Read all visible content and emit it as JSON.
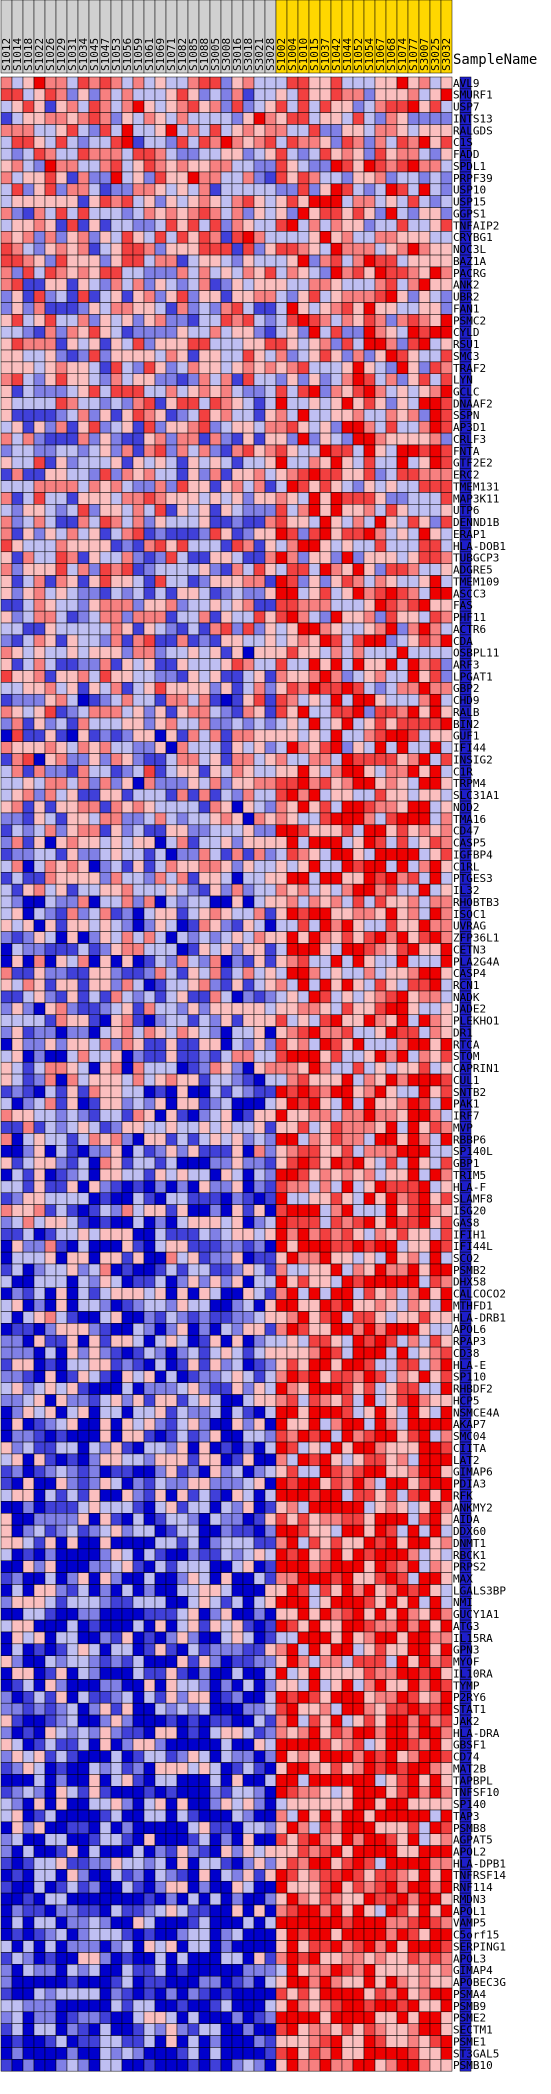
{
  "chart_data": {
    "type": "heatmap",
    "row_header": "SampleName",
    "samples": [
      "S1012",
      "S1014",
      "S1018",
      "S1022",
      "S1026",
      "S1029",
      "S1031",
      "S1034",
      "S1045",
      "S1047",
      "S1053",
      "S1056",
      "S1059",
      "S1061",
      "S1069",
      "S1071",
      "S1082",
      "S1085",
      "S1088",
      "S3005",
      "S3008",
      "S3016",
      "S3018",
      "S3021",
      "S3028",
      "S1002",
      "S1004",
      "S1010",
      "S1015",
      "S1037",
      "S1042",
      "S1044",
      "S1052",
      "S1054",
      "S1067",
      "S1068",
      "S1074",
      "S1077",
      "S3007",
      "S3025",
      "S3032"
    ],
    "sample_groups": [
      {
        "count": 25,
        "color": "#d0d0d0"
      },
      {
        "count": 16,
        "color": "#ffd700"
      }
    ],
    "genes": [
      "AVL9",
      "SMURF1",
      "USP7",
      "INTS13",
      "RALGDS",
      "C1S",
      "FADD",
      "SPDL1",
      "PRPF39",
      "USP10",
      "USP15",
      "GGPS1",
      "TNFAIP2",
      "CRYBG1",
      "NOC3L",
      "BAZ1A",
      "PACRG",
      "ANK2",
      "UBR2",
      "FAN1",
      "PSMC2",
      "CYLD",
      "RSU1",
      "SMC3",
      "TRAF2",
      "LYN",
      "GCLC",
      "DNAAF2",
      "SSPN",
      "AP3D1",
      "CRLF3",
      "FNTA",
      "GTF2E2",
      "ERC2",
      "TMEM131",
      "MAP3K11",
      "UTP6",
      "DENND1B",
      "ERAP1",
      "HLA-DOB1",
      "TUBGCP3",
      "ADGRE5",
      "TMEM109",
      "ASCC3",
      "FAS",
      "PHF11",
      "ACTR6",
      "CDA",
      "OSBPL11",
      "ARF3",
      "LPGAT1",
      "GBP2",
      "CHD9",
      "RALB",
      "BIN2",
      "GUF1",
      "IFI44",
      "INSIG2",
      "C1R",
      "TRPM4",
      "SLC31A1",
      "NOD2",
      "TMA16",
      "CD47",
      "CASP5",
      "IGFBP4",
      "C1RL",
      "PTGES3",
      "IL32",
      "RHOBTB3",
      "ISOC1",
      "UVRAG",
      "ZFP36L1",
      "CETN3",
      "PLA2G4A",
      "CASP4",
      "RCN1",
      "NADK",
      "JADE2",
      "PLEKHO1",
      "DR1",
      "RTCA",
      "STOM",
      "CAPRIN1",
      "CUL1",
      "SNTB2",
      "PAK1",
      "IRF7",
      "MVP",
      "RBBP6",
      "SP140L",
      "GBP1",
      "TRIM5",
      "HLA-F",
      "SLAMF8",
      "ISG20",
      "GAS8",
      "IFIH1",
      "IFI44L",
      "SCO2",
      "PSMB2",
      "DHX58",
      "CALCOCO2",
      "MTHFD1",
      "HLA-DRB1",
      "APOL6",
      "RPAP3",
      "CD38",
      "HLA-E",
      "SP110",
      "RHBDF2",
      "HCP5",
      "NSMCE4A",
      "AKAP7",
      "SMC04",
      "CIITA",
      "LAT2",
      "GIMAP6",
      "PDIA3",
      "RFK",
      "ANKMY2",
      "AIDA",
      "DDX60",
      "DNMT1",
      "RBCK1",
      "PRPS2",
      "MAX",
      "LGALS3BP",
      "NMI",
      "GUCY1A1",
      "ATG3",
      "IL15RA",
      "GPN3",
      "MYOF",
      "IL10RA",
      "TYMP",
      "P2RY6",
      "STAT1",
      "JAK2",
      "HLA-DRA",
      "GBSF1",
      "CD74",
      "MAT2B",
      "TAPBPL",
      "TNFSF10",
      "SP140",
      "TAP3",
      "PSMB8",
      "AGPAT5",
      "APOL2",
      "HLA-DPB1",
      "TNFRSF14",
      "RNF114",
      "RMDN3",
      "APOL1",
      "VAMP5",
      "C5orf15",
      "SERPING1",
      "APOL3",
      "GIMAP4",
      "APOBEC3G",
      "PSMA4",
      "PSMB9",
      "PSME2",
      "SECTM1",
      "PSME1",
      "ST3GAL5",
      "PSMB10"
    ],
    "value_range": [
      -1,
      1
    ],
    "colormap": [
      "#0000cc",
      "#ffffff",
      "#ee0000"
    ]
  }
}
